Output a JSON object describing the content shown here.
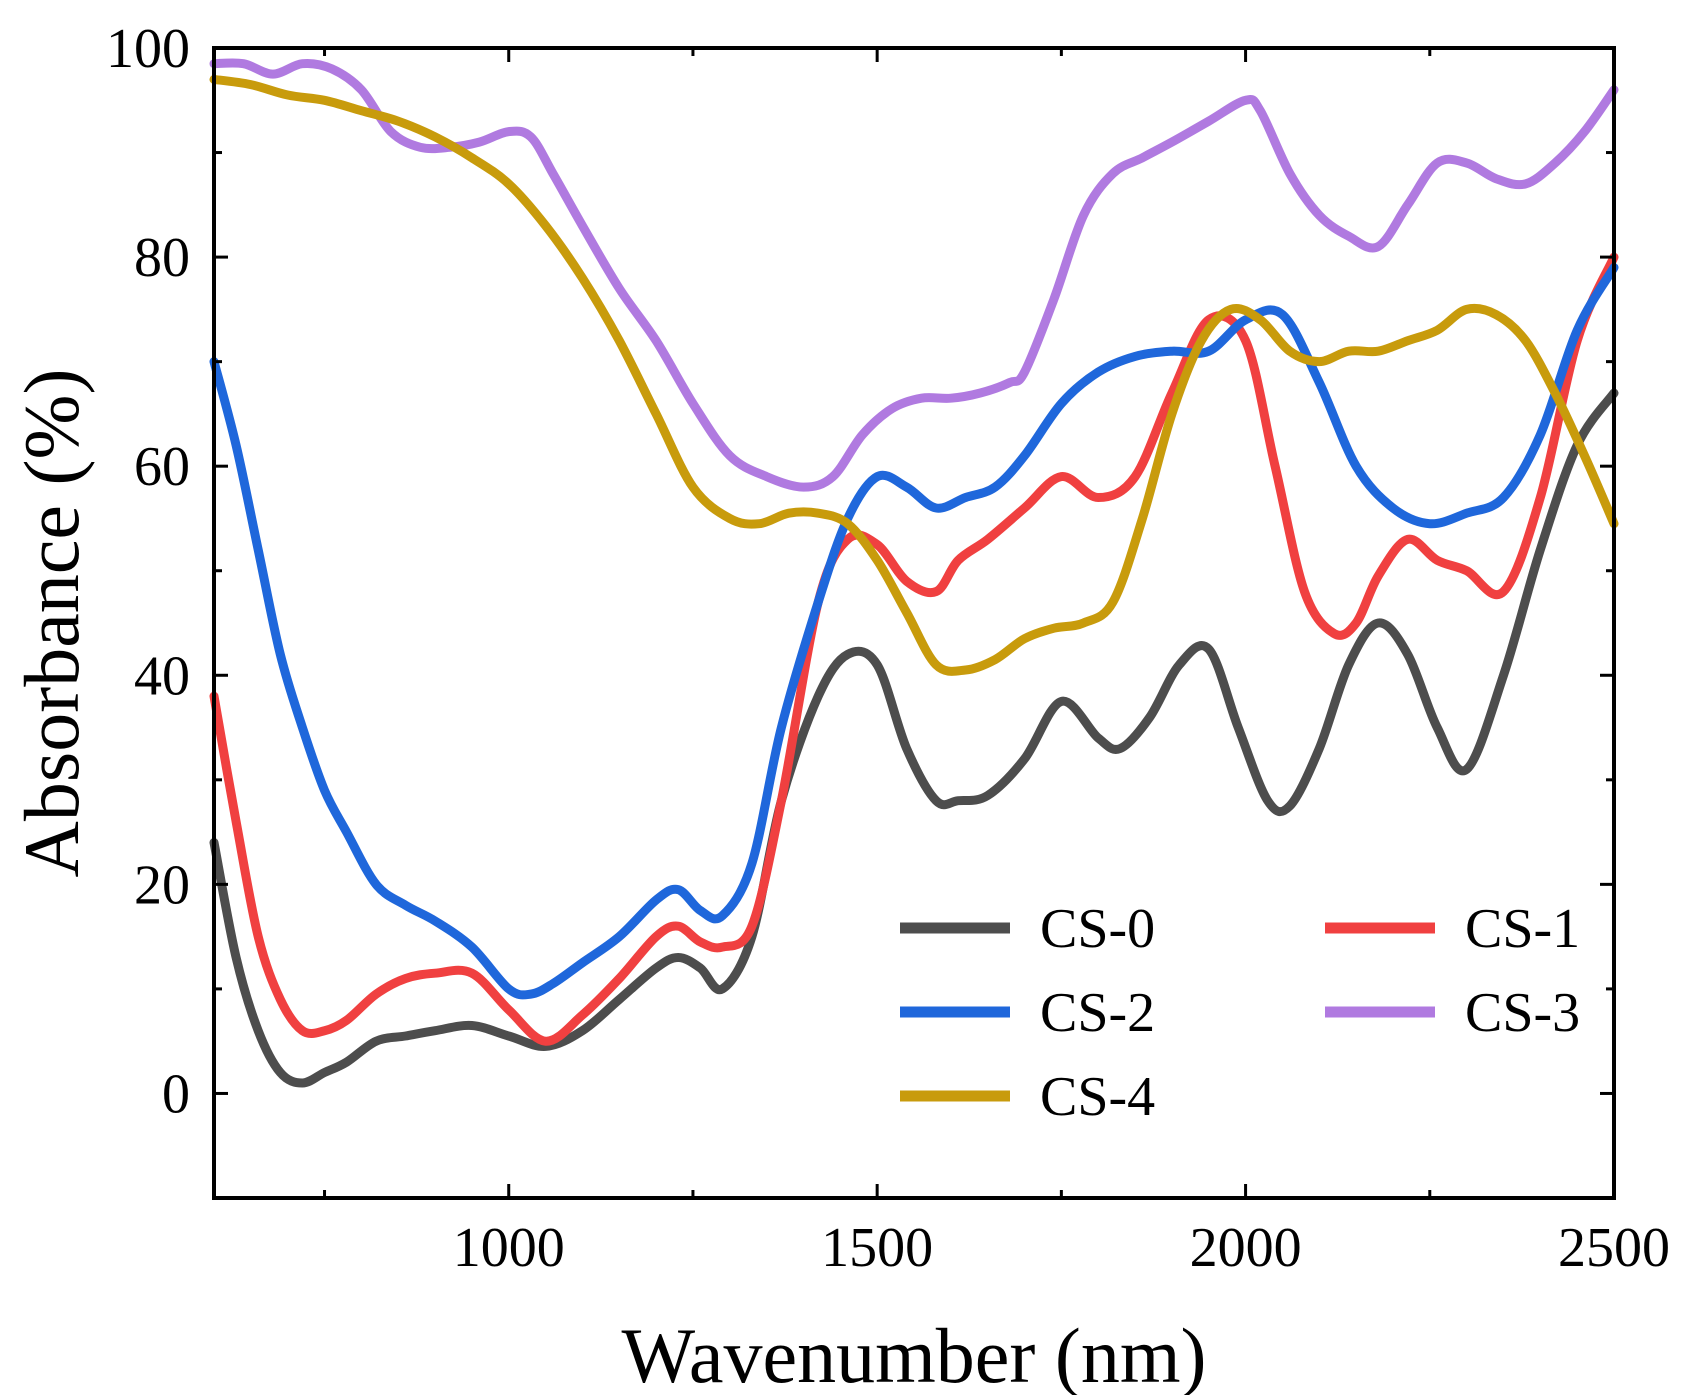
{
  "chart_data": {
    "type": "line",
    "title": "",
    "xlabel": "Wavenumber (nm)",
    "ylabel": "Absorbance (%)",
    "xlim": [
      600,
      2500
    ],
    "ylim": [
      -10,
      100
    ],
    "xticks": [
      1000,
      1500,
      2000,
      2500
    ],
    "xtick_labels": [
      "1000",
      "1500",
      "2000",
      "2500"
    ],
    "yticks": [
      0,
      20,
      40,
      60,
      80,
      100
    ],
    "ytick_labels": [
      "0",
      "20",
      "40",
      "60",
      "80",
      "100"
    ],
    "grid": false,
    "legend_position": "bottom-right",
    "series": [
      {
        "name": "CS-0",
        "color": "#4d4d4d",
        "x": [
          600,
          630,
          660,
          690,
          720,
          750,
          780,
          820,
          860,
          900,
          950,
          1000,
          1050,
          1100,
          1150,
          1200,
          1230,
          1260,
          1290,
          1330,
          1370,
          1420,
          1460,
          1500,
          1540,
          1580,
          1610,
          1650,
          1700,
          1750,
          1800,
          1830,
          1870,
          1910,
          1950,
          1990,
          2030,
          2060,
          2100,
          2140,
          2180,
          2220,
          2260,
          2300,
          2350,
          2400,
          2450,
          2500
        ],
        "y": [
          24,
          13,
          6,
          2,
          1,
          2,
          3,
          5,
          5.5,
          6,
          6.5,
          5.5,
          4.5,
          6,
          9,
          12,
          13,
          12,
          10,
          15,
          28,
          38,
          42,
          41,
          33,
          28,
          28,
          28.5,
          32,
          37.5,
          34,
          33,
          36,
          41,
          42.5,
          35,
          28,
          27.5,
          33,
          41,
          45,
          42,
          35,
          31,
          40,
          52,
          62,
          67
        ]
      },
      {
        "name": "CS-1",
        "color": "#f04040",
        "x": [
          600,
          630,
          660,
          690,
          720,
          750,
          780,
          820,
          860,
          900,
          950,
          1000,
          1050,
          1100,
          1150,
          1200,
          1230,
          1260,
          1290,
          1330,
          1370,
          1420,
          1460,
          1500,
          1540,
          1580,
          1610,
          1650,
          1700,
          1750,
          1800,
          1850,
          1900,
          1950,
          2000,
          2040,
          2080,
          2120,
          2150,
          2180,
          2220,
          2260,
          2300,
          2350,
          2400,
          2450,
          2500
        ],
        "y": [
          38,
          26,
          15,
          9,
          6,
          6,
          7,
          9.5,
          11,
          11.5,
          11.5,
          8,
          5,
          7.5,
          11,
          15,
          16,
          14.5,
          14,
          16,
          28,
          47,
          53,
          52.5,
          49,
          48,
          51,
          53,
          56,
          59,
          57,
          59,
          67,
          74,
          72,
          60,
          48,
          44,
          45,
          49.5,
          53,
          51,
          50,
          48,
          57,
          72,
          80
        ]
      },
      {
        "name": "CS-2",
        "color": "#1f67db",
        "x": [
          600,
          630,
          660,
          690,
          720,
          750,
          780,
          820,
          860,
          900,
          950,
          1000,
          1030,
          1060,
          1100,
          1150,
          1200,
          1230,
          1260,
          1290,
          1330,
          1370,
          1420,
          1460,
          1500,
          1540,
          1580,
          1620,
          1660,
          1700,
          1750,
          1800,
          1850,
          1900,
          1950,
          2000,
          2050,
          2100,
          2150,
          2200,
          2250,
          2300,
          2350,
          2400,
          2450,
          2500
        ],
        "y": [
          70,
          62,
          52,
          42,
          35,
          29,
          25,
          20,
          18,
          16.5,
          14,
          10,
          9.5,
          10.5,
          12.5,
          15,
          18.5,
          19.5,
          17.5,
          17,
          22,
          35,
          47,
          55,
          59,
          58,
          56,
          57,
          58,
          61,
          66,
          69,
          70.5,
          71,
          71,
          74,
          74.5,
          68,
          60,
          56,
          54.5,
          55.5,
          57,
          63,
          73,
          79
        ]
      },
      {
        "name": "CS-3",
        "color": "#b07ae0",
        "x": [
          600,
          640,
          680,
          720,
          760,
          800,
          840,
          880,
          920,
          960,
          1000,
          1030,
          1060,
          1100,
          1150,
          1200,
          1250,
          1300,
          1350,
          1400,
          1440,
          1480,
          1520,
          1560,
          1600,
          1640,
          1680,
          1700,
          1740,
          1780,
          1820,
          1860,
          1900,
          1950,
          2000,
          2020,
          2060,
          2100,
          2140,
          2180,
          2220,
          2260,
          2300,
          2340,
          2380,
          2420,
          2460,
          2500
        ],
        "y": [
          98.5,
          98.5,
          97.5,
          98.5,
          98,
          96,
          92,
          90.5,
          90.5,
          91,
          92,
          91.5,
          88,
          83,
          77,
          72,
          66,
          61,
          59,
          58,
          59,
          63,
          65.5,
          66.5,
          66.5,
          67,
          68,
          69,
          76,
          84,
          88,
          89.5,
          91,
          93,
          95,
          94,
          88,
          84,
          82,
          81,
          85,
          89,
          89,
          87.5,
          87,
          89,
          92,
          96
        ]
      },
      {
        "name": "CS-4",
        "color": "#c89b0c",
        "x": [
          600,
          650,
          700,
          750,
          800,
          850,
          900,
          950,
          1000,
          1050,
          1100,
          1150,
          1200,
          1250,
          1300,
          1340,
          1380,
          1420,
          1460,
          1500,
          1540,
          1580,
          1620,
          1660,
          1700,
          1740,
          1780,
          1820,
          1860,
          1900,
          1940,
          1980,
          2020,
          2060,
          2100,
          2140,
          2180,
          2220,
          2260,
          2300,
          2340,
          2380,
          2420,
          2460,
          2500
        ],
        "y": [
          97,
          96.5,
          95.5,
          95,
          94,
          93,
          91.5,
          89.5,
          87,
          83,
          78,
          72,
          65,
          58,
          55,
          54.5,
          55.5,
          55.5,
          54.5,
          51,
          46,
          41,
          40.5,
          41.5,
          43.5,
          44.5,
          45,
          47,
          55,
          65,
          72,
          75,
          74,
          71,
          70,
          71,
          71,
          72,
          73,
          75,
          74.5,
          72,
          67,
          61,
          54.5
        ]
      }
    ],
    "legend": {
      "entries": [
        "CS-0",
        "CS-1",
        "CS-2",
        "CS-3",
        "CS-4"
      ],
      "columns": 2
    }
  }
}
